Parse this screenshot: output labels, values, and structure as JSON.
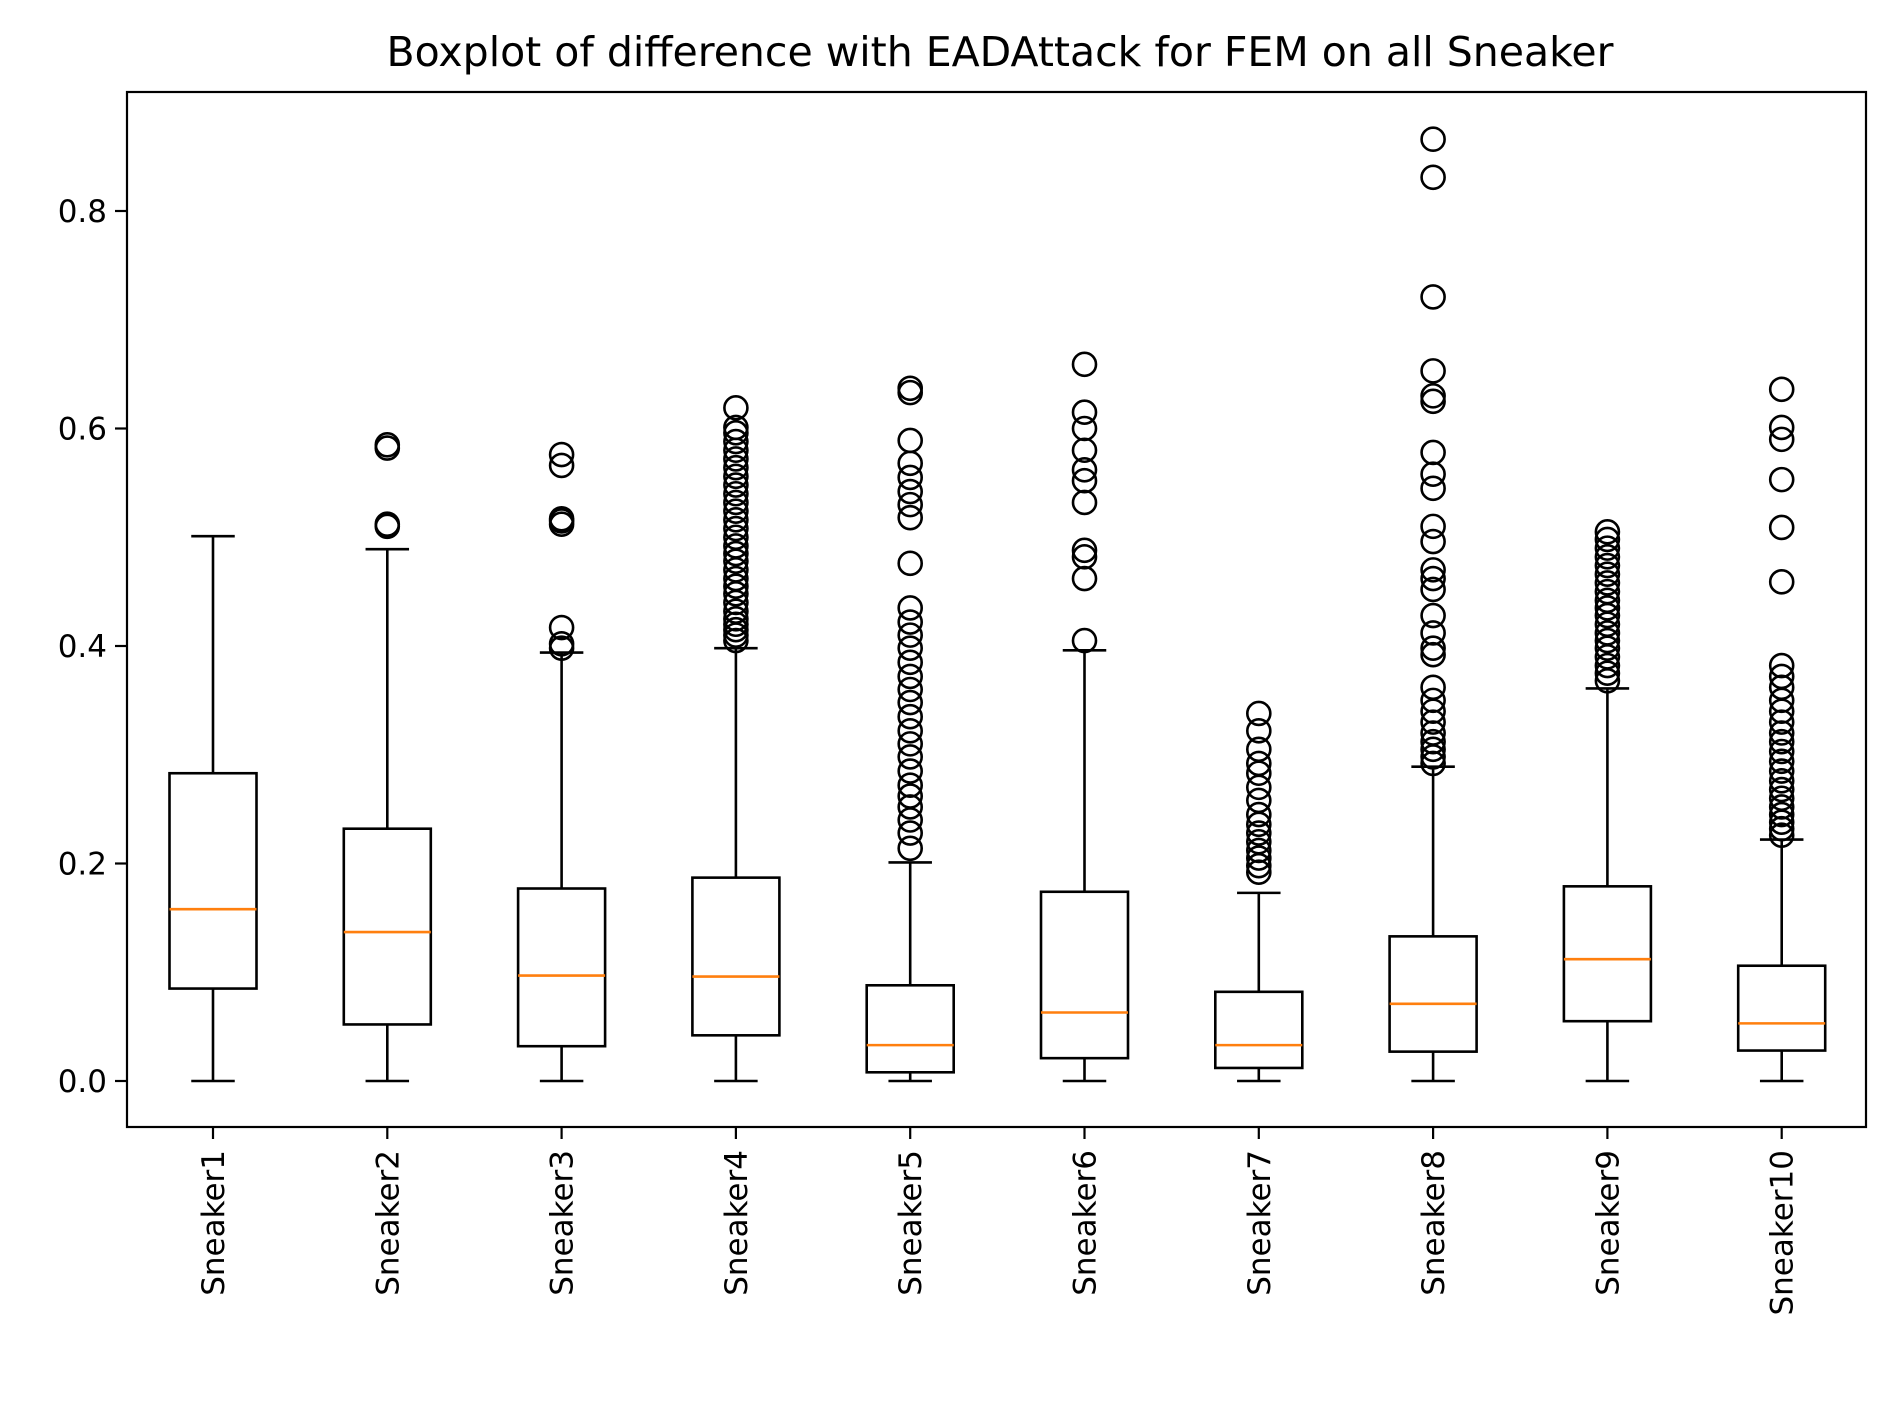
{
  "chart_data": {
    "type": "boxplot",
    "title": "Boxplot of difference with EADAttack for FEM on all Sneaker",
    "xlabel": "",
    "ylabel": "",
    "ylim": [
      -0.042,
      0.91
    ],
    "yticks": [
      0.0,
      0.2,
      0.4,
      0.6,
      0.8
    ],
    "ytick_labels": [
      "0.0",
      "0.2",
      "0.4",
      "0.6",
      "0.8"
    ],
    "grid": false,
    "colors": {
      "median": "#ff7f0e",
      "box": "#000000",
      "flier": "#000000"
    },
    "categories": [
      "Sneaker1",
      "Sneaker2",
      "Sneaker3",
      "Sneaker4",
      "Sneaker5",
      "Sneaker6",
      "Sneaker7",
      "Sneaker8",
      "Sneaker9",
      "Sneaker10"
    ],
    "boxes": [
      {
        "label": "Sneaker1",
        "whislo": 0.0,
        "q1": 0.085,
        "med": 0.158,
        "q3": 0.283,
        "whishi": 0.501,
        "fliers": []
      },
      {
        "label": "Sneaker2",
        "whislo": 0.0,
        "q1": 0.052,
        "med": 0.137,
        "q3": 0.232,
        "whishi": 0.489,
        "fliers": [
          0.51,
          0.512,
          0.582,
          0.585
        ]
      },
      {
        "label": "Sneaker3",
        "whislo": 0.0,
        "q1": 0.032,
        "med": 0.097,
        "q3": 0.177,
        "whishi": 0.394,
        "fliers": [
          0.398,
          0.402,
          0.417,
          0.512,
          0.515,
          0.517,
          0.566,
          0.576
        ]
      },
      {
        "label": "Sneaker4",
        "whislo": 0.0,
        "q1": 0.042,
        "med": 0.096,
        "q3": 0.187,
        "whishi": 0.398,
        "fliers": [
          0.405,
          0.41,
          0.415,
          0.42,
          0.425,
          0.432,
          0.44,
          0.448,
          0.455,
          0.462,
          0.47,
          0.478,
          0.485,
          0.492,
          0.5,
          0.508,
          0.516,
          0.524,
          0.532,
          0.54,
          0.548,
          0.556,
          0.564,
          0.572,
          0.58,
          0.588,
          0.596,
          0.601,
          0.619
        ]
      },
      {
        "label": "Sneaker5",
        "whislo": 0.0,
        "q1": 0.008,
        "med": 0.033,
        "q3": 0.088,
        "whishi": 0.201,
        "fliers": [
          0.214,
          0.228,
          0.24,
          0.252,
          0.262,
          0.272,
          0.285,
          0.298,
          0.31,
          0.322,
          0.335,
          0.348,
          0.36,
          0.372,
          0.385,
          0.398,
          0.41,
          0.422,
          0.435,
          0.476,
          0.518,
          0.53,
          0.542,
          0.555,
          0.568,
          0.589,
          0.633,
          0.637
        ]
      },
      {
        "label": "Sneaker6",
        "whislo": 0.0,
        "q1": 0.021,
        "med": 0.063,
        "q3": 0.174,
        "whishi": 0.396,
        "fliers": [
          0.405,
          0.462,
          0.482,
          0.488,
          0.532,
          0.552,
          0.562,
          0.58,
          0.6,
          0.615,
          0.659
        ]
      },
      {
        "label": "Sneaker7",
        "whislo": 0.0,
        "q1": 0.012,
        "med": 0.033,
        "q3": 0.082,
        "whishi": 0.173,
        "fliers": [
          0.192,
          0.198,
          0.205,
          0.212,
          0.22,
          0.228,
          0.236,
          0.245,
          0.258,
          0.27,
          0.283,
          0.292,
          0.305,
          0.322,
          0.338
        ]
      },
      {
        "label": "Sneaker8",
        "whislo": 0.0,
        "q1": 0.027,
        "med": 0.071,
        "q3": 0.133,
        "whishi": 0.289,
        "fliers": [
          0.292,
          0.298,
          0.305,
          0.312,
          0.32,
          0.33,
          0.34,
          0.35,
          0.362,
          0.392,
          0.398,
          0.412,
          0.428,
          0.452,
          0.462,
          0.47,
          0.496,
          0.51,
          0.545,
          0.558,
          0.578,
          0.625,
          0.63,
          0.653,
          0.721,
          0.831,
          0.866
        ]
      },
      {
        "label": "Sneaker9",
        "whislo": 0.0,
        "q1": 0.055,
        "med": 0.112,
        "q3": 0.179,
        "whishi": 0.361,
        "fliers": [
          0.368,
          0.375,
          0.382,
          0.39,
          0.398,
          0.405,
          0.412,
          0.42,
          0.428,
          0.435,
          0.442,
          0.45,
          0.458,
          0.466,
          0.474,
          0.482,
          0.49,
          0.498,
          0.505
        ]
      },
      {
        "label": "Sneaker10",
        "whislo": 0.0,
        "q1": 0.028,
        "med": 0.053,
        "q3": 0.106,
        "whishi": 0.222,
        "fliers": [
          0.226,
          0.232,
          0.238,
          0.245,
          0.252,
          0.26,
          0.268,
          0.276,
          0.285,
          0.294,
          0.303,
          0.312,
          0.32,
          0.33,
          0.34,
          0.35,
          0.362,
          0.372,
          0.382,
          0.459,
          0.509,
          0.553,
          0.59,
          0.601,
          0.636
        ]
      }
    ]
  }
}
